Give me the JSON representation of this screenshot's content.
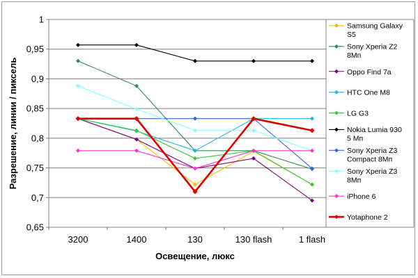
{
  "chart_data": {
    "type": "line",
    "title": "",
    "xlabel": "Освещение, люкс",
    "ylabel": "Разрешение, линии / пиксель",
    "ylim": [
      0.65,
      1
    ],
    "yticks": [
      "1",
      "0,95",
      "0,9",
      "0,85",
      "0,8",
      "0,75",
      "0,7",
      "0,65"
    ],
    "grid": "horizontal",
    "legend_position": "right",
    "categories": [
      "3200",
      "1400",
      "130",
      "130 flash",
      "1 flash"
    ],
    "series": [
      {
        "name": "Samsung Galaxy S5",
        "legend_lines": [
          "Samsung Galaxy",
          "S5"
        ],
        "color": "#f0c000",
        "marker": "diamond",
        "values": [
          0.833,
          0.798,
          0.722,
          0.778,
          0.722
        ]
      },
      {
        "name": "Sony Xperia Z2 8Мп",
        "legend_lines": [
          "Sony Xperia Z2",
          "8Мп"
        ],
        "color": "#2e8b57",
        "marker": "diamond",
        "values": [
          0.93,
          0.888,
          0.779,
          0.779,
          0.748
        ]
      },
      {
        "name": "Oppo Find 7a",
        "legend_lines": [
          "Oppo Find 7a"
        ],
        "color": "#800080",
        "marker": "diamond",
        "values": [
          0.833,
          0.798,
          0.749,
          0.766,
          0.695
        ]
      },
      {
        "name": "HTC One M8",
        "legend_lines": [
          "HTC One M8"
        ],
        "color": "#1eb4e6",
        "marker": "diamond",
        "values": [
          0.833,
          0.812,
          0.779,
          0.833,
          0.833
        ]
      },
      {
        "name": "LG G3",
        "legend_lines": [
          "LG G3"
        ],
        "color": "#33cc33",
        "marker": "diamond",
        "values": [
          0.833,
          0.813,
          0.766,
          0.779,
          0.722
        ]
      },
      {
        "name": "Nokia Lumia 930 5 Мп",
        "legend_lines": [
          "Nokia Lumia 930",
          "5 Мп"
        ],
        "color": "#000000",
        "marker": "diamond",
        "values": [
          0.957,
          0.957,
          0.93,
          0.93,
          0.93
        ]
      },
      {
        "name": "Sony Xperia Z3 Compact 8Мп",
        "legend_lines": [
          "Sony Xperia Z3",
          "Compact 8Мп"
        ],
        "color": "#3366dd",
        "marker": "diamond",
        "values": [
          0.833,
          0.833,
          0.833,
          0.833,
          0.749
        ]
      },
      {
        "name": "Sony Xperia Z3 8Мп",
        "legend_lines": [
          "Sony Xperia Z3",
          "8Мп"
        ],
        "color": "#80ffff",
        "marker": "diamond",
        "values": [
          0.888,
          0.849,
          0.813,
          0.813,
          0.779
        ]
      },
      {
        "name": "iPhone 6",
        "legend_lines": [
          "iPhone 6"
        ],
        "color": "#ff33cc",
        "marker": "diamond",
        "values": [
          0.779,
          0.779,
          0.749,
          0.779,
          0.779
        ]
      },
      {
        "name": "Yotaphone 2",
        "legend_lines": [
          "Yotaphone 2"
        ],
        "color": "#e00000",
        "marker": "diamond",
        "values": [
          0.833,
          0.833,
          0.71,
          0.833,
          0.813
        ],
        "bold": true
      }
    ]
  }
}
